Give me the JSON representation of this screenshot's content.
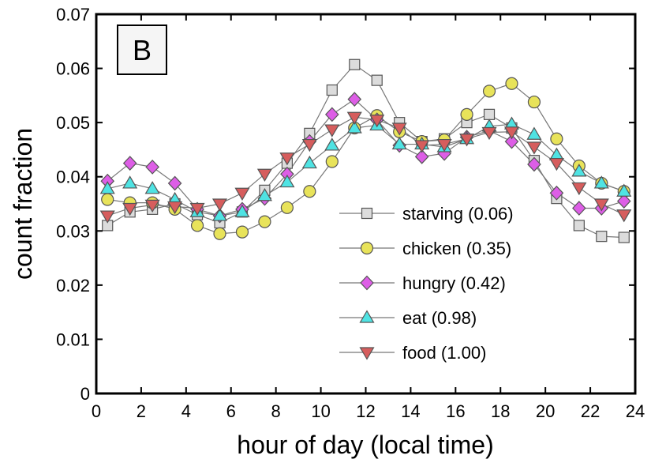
{
  "chart_data": {
    "type": "line",
    "panel_label": "B",
    "xlabel": "hour of day (local time)",
    "ylabel": "count fraction",
    "xlim": [
      0,
      24
    ],
    "ylim": [
      0,
      0.07
    ],
    "xticks": [
      "0",
      "2",
      "4",
      "6",
      "8",
      "10",
      "12",
      "14",
      "16",
      "18",
      "20",
      "22",
      "24"
    ],
    "yticks": [
      "0",
      "0.01",
      "0.02",
      "0.03",
      "0.04",
      "0.05",
      "0.06",
      "0.07"
    ],
    "grid": false,
    "legend_position": "bottom-right",
    "x": [
      0.5,
      1.5,
      2.5,
      3.5,
      4.5,
      5.5,
      6.5,
      7.5,
      8.5,
      9.5,
      10.5,
      11.5,
      12.5,
      13.5,
      14.5,
      15.5,
      16.5,
      17.5,
      18.5,
      19.5,
      20.5,
      21.5,
      22.5,
      23.5
    ],
    "series": [
      {
        "name": "starving (0.06)",
        "marker": "square",
        "color": "#dcdcdc",
        "values": [
          0.031,
          0.0335,
          0.034,
          0.035,
          0.033,
          0.0315,
          0.0335,
          0.0375,
          0.0425,
          0.048,
          0.056,
          0.0607,
          0.0578,
          0.05,
          0.0465,
          0.047,
          0.05,
          0.0515,
          0.049,
          0.043,
          0.036,
          0.031,
          0.029,
          0.0288
        ]
      },
      {
        "name": "chicken (0.35)",
        "marker": "circle",
        "color": "#e8e35a",
        "values": [
          0.0358,
          0.0352,
          0.0352,
          0.034,
          0.031,
          0.0295,
          0.0298,
          0.0317,
          0.0343,
          0.0373,
          0.0428,
          0.049,
          0.0513,
          0.0483,
          0.0465,
          0.0468,
          0.0515,
          0.0558,
          0.0572,
          0.0538,
          0.047,
          0.042,
          0.0388,
          0.0373
        ]
      },
      {
        "name": "hungry (0.42)",
        "marker": "diamond",
        "color": "#dd5ee6",
        "values": [
          0.0392,
          0.0425,
          0.0418,
          0.0388,
          0.034,
          0.0328,
          0.034,
          0.036,
          0.0405,
          0.0465,
          0.0515,
          0.0543,
          0.0505,
          0.0458,
          0.0437,
          0.0443,
          0.0473,
          0.0485,
          0.0465,
          0.0423,
          0.037,
          0.0342,
          0.0342,
          0.0355
        ]
      },
      {
        "name": "eat (0.98)",
        "marker": "triangle-up",
        "color": "#4fe3e3",
        "values": [
          0.0378,
          0.0388,
          0.0378,
          0.0358,
          0.0335,
          0.0328,
          0.0335,
          0.0365,
          0.039,
          0.0425,
          0.0458,
          0.049,
          0.0495,
          0.046,
          0.046,
          0.0455,
          0.047,
          0.0493,
          0.0497,
          0.0478,
          0.044,
          0.041,
          0.0388,
          0.0373
        ]
      },
      {
        "name": "food (1.00)",
        "marker": "triangle-down",
        "color": "#d65d5d",
        "values": [
          0.0328,
          0.0342,
          0.0348,
          0.0345,
          0.0342,
          0.035,
          0.037,
          0.0405,
          0.0435,
          0.046,
          0.0487,
          0.051,
          0.0505,
          0.049,
          0.0458,
          0.046,
          0.047,
          0.0482,
          0.0483,
          0.0455,
          0.0425,
          0.038,
          0.035,
          0.033
        ]
      }
    ]
  }
}
